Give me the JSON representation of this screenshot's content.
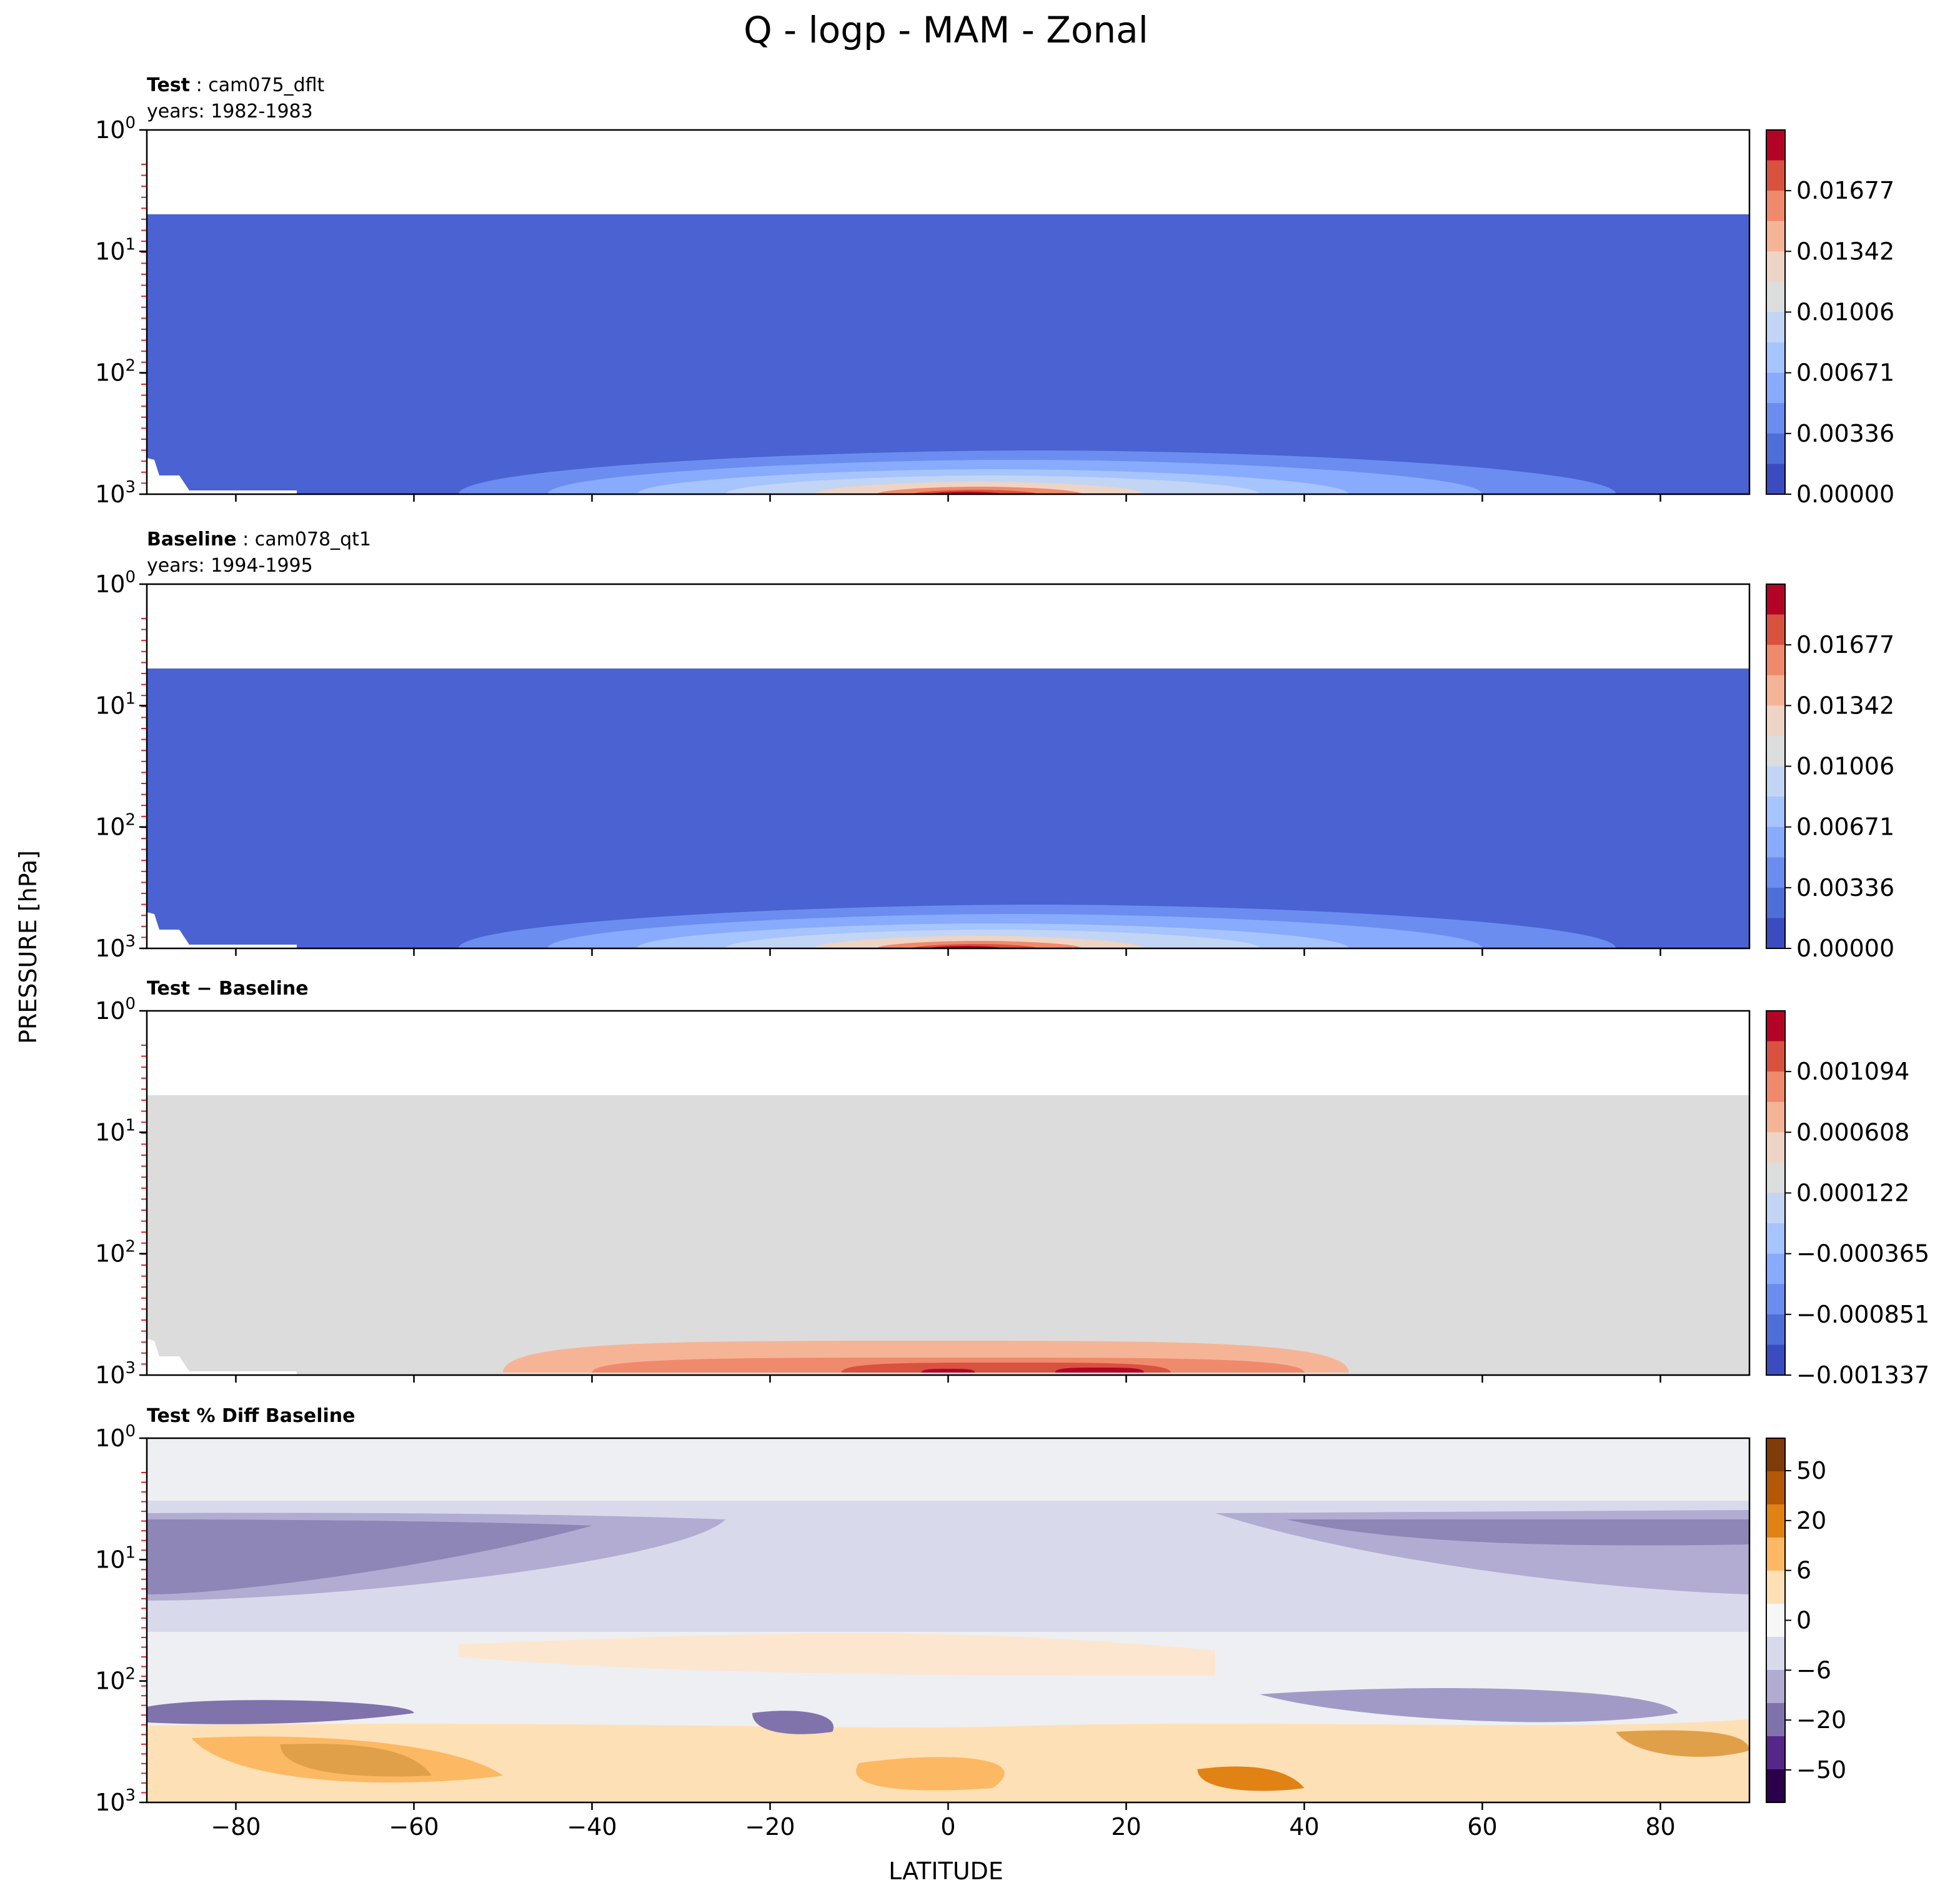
{
  "figure": {
    "title": "Q - logp - MAM - Zonal",
    "ylabel": "PRESSURE [hPa]",
    "xlabel": "LATITUDE"
  },
  "chart_data": [
    {
      "type": "heatmap",
      "panel_label_bold": "Test",
      "panel_label_rest": "cam075_dflt",
      "years_label": "years: 1982-1983",
      "x_ticks": [
        -80,
        -60,
        -40,
        -20,
        0,
        20,
        40,
        60,
        80
      ],
      "xlim": [
        -90,
        90
      ],
      "y_ticks": [
        "10^0",
        "10^1",
        "10^2",
        "10^3"
      ],
      "y_scale": "log",
      "ylim": [
        1000,
        1
      ],
      "colorbar_ticks": [
        "0.01677",
        "0.01342",
        "0.01006",
        "0.00671",
        "0.00336",
        "0.00000"
      ],
      "colorbar_colors": [
        "#b40426",
        "#d8523f",
        "#f08a6c",
        "#f6b497",
        "#eed4c4",
        "#dcdddd",
        "#c3d5f4",
        "#a6c4fe",
        "#88abfd",
        "#6b8df0",
        "#4f6fd8",
        "#3b4cc0"
      ],
      "plot_fill": "#4a62d2"
    },
    {
      "type": "heatmap",
      "panel_label_bold": "Baseline",
      "panel_label_rest": "cam078_qt1",
      "years_label": "years: 1994-1995",
      "x_ticks": [
        -80,
        -60,
        -40,
        -20,
        0,
        20,
        40,
        60,
        80
      ],
      "xlim": [
        -90,
        90
      ],
      "y_ticks": [
        "10^0",
        "10^1",
        "10^2",
        "10^3"
      ],
      "y_scale": "log",
      "ylim": [
        1000,
        1
      ],
      "colorbar_ticks": [
        "0.01677",
        "0.01342",
        "0.01006",
        "0.00671",
        "0.00336",
        "0.00000"
      ],
      "colorbar_colors": [
        "#b40426",
        "#d8523f",
        "#f08a6c",
        "#f6b497",
        "#eed4c4",
        "#dcdddd",
        "#c3d5f4",
        "#a6c4fe",
        "#88abfd",
        "#6b8df0",
        "#4f6fd8",
        "#3b4cc0"
      ],
      "plot_fill": "#4a62d2"
    },
    {
      "type": "heatmap",
      "panel_label_bold": "Test − Baseline",
      "panel_label_rest": "",
      "years_label": "",
      "x_ticks": [
        -80,
        -60,
        -40,
        -20,
        0,
        20,
        40,
        60,
        80
      ],
      "xlim": [
        -90,
        90
      ],
      "y_ticks": [
        "10^0",
        "10^1",
        "10^2",
        "10^3"
      ],
      "y_scale": "log",
      "ylim": [
        1000,
        1
      ],
      "colorbar_ticks": [
        "0.001094",
        "0.000608",
        "0.000122",
        "−0.000365",
        "−0.000851",
        "−0.001337"
      ],
      "colorbar_colors": [
        "#b40426",
        "#d8523f",
        "#f08a6c",
        "#f6b497",
        "#eed4c4",
        "#dcdddd",
        "#c3d5f4",
        "#a6c4fe",
        "#88abfd",
        "#6b8df0",
        "#4f6fd8",
        "#3b4cc0"
      ],
      "plot_fill": "#dcdcdc"
    },
    {
      "type": "heatmap",
      "panel_label_bold": "Test % Diff Baseline",
      "panel_label_rest": "",
      "years_label": "",
      "x_ticks": [
        -80,
        -60,
        -40,
        -20,
        0,
        20,
        40,
        60,
        80
      ],
      "xlim": [
        -90,
        90
      ],
      "y_ticks": [
        "10^0",
        "10^1",
        "10^2",
        "10^3"
      ],
      "y_scale": "log",
      "ylim": [
        1000,
        1
      ],
      "colorbar_ticks": [
        "50",
        "20",
        "6",
        "0",
        "−6",
        "−20",
        "−50"
      ],
      "colorbar_colors": [
        "#7f3b08",
        "#b35806",
        "#e08214",
        "#fdb863",
        "#fee0b6",
        "#f7f7f7",
        "#d8daeb",
        "#b2abd2",
        "#8073ac",
        "#542788",
        "#2d004b"
      ],
      "plot_fill": "#eeeff3"
    }
  ]
}
